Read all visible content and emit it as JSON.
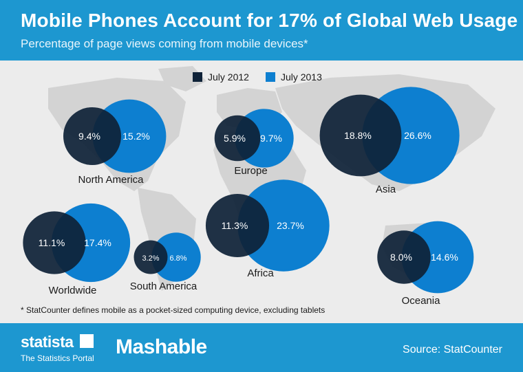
{
  "header": {
    "title": "Mobile Phones Account for 17% of Global Web Usage",
    "subtitle": "Percentage of page views coming from mobile devices*"
  },
  "legend": {
    "items": [
      {
        "label": "July 2012",
        "color": "#0f2238"
      },
      {
        "label": "July 2013",
        "color": "#0d7fd0"
      }
    ]
  },
  "chart_data": {
    "type": "bubble",
    "series": [
      {
        "name": "July 2012",
        "color": "#0f2238"
      },
      {
        "name": "July 2013",
        "color": "#0d7fd0"
      }
    ],
    "regions": [
      {
        "name": "North America",
        "values": [
          9.4,
          15.2
        ],
        "labels": [
          "9.4%",
          "15.2%"
        ]
      },
      {
        "name": "Europe",
        "values": [
          5.9,
          9.7
        ],
        "labels": [
          "5.9%",
          "9.7%"
        ]
      },
      {
        "name": "Asia",
        "values": [
          18.8,
          26.6
        ],
        "labels": [
          "18.8%",
          "26.6%"
        ]
      },
      {
        "name": "Worldwide",
        "values": [
          11.1,
          17.4
        ],
        "labels": [
          "11.1%",
          "17.4%"
        ]
      },
      {
        "name": "South America",
        "values": [
          3.2,
          6.8
        ],
        "labels": [
          "3.2%",
          "6.8%"
        ]
      },
      {
        "name": "Africa",
        "values": [
          11.3,
          23.7
        ],
        "labels": [
          "11.3%",
          "23.7%"
        ]
      },
      {
        "name": "Oceania",
        "values": [
          8.0,
          14.6
        ],
        "labels": [
          "8.0%",
          "14.6%"
        ]
      }
    ]
  },
  "footnote": "* StatCounter defines mobile as a pocket-sized computing device, excluding tablets",
  "footer": {
    "brand": "statista",
    "brand_sub": "The Statistics Portal",
    "partner": "Mashable",
    "source": "Source: StatCounter"
  }
}
